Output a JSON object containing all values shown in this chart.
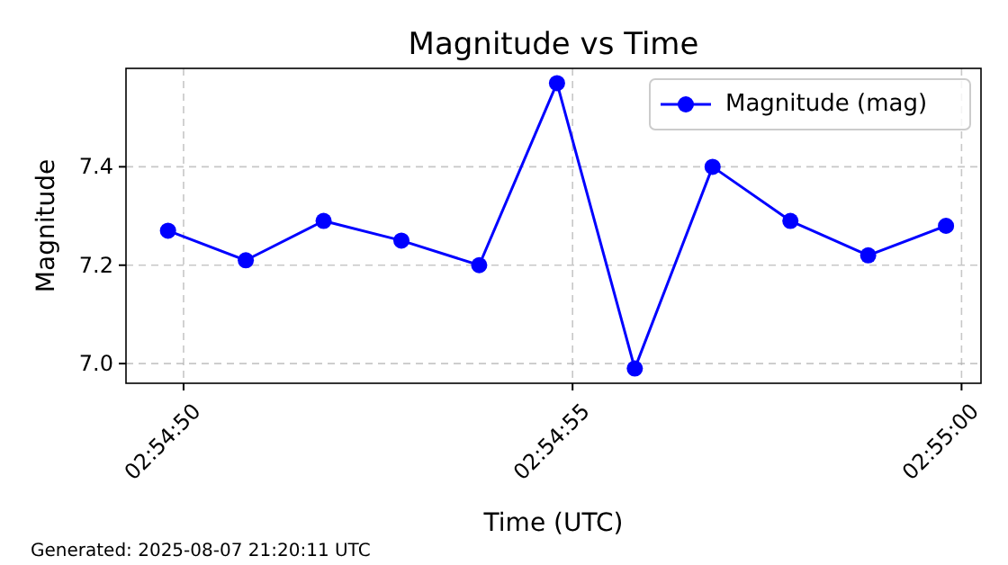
{
  "chart_data": {
    "type": "line",
    "title": "Magnitude vs Time",
    "xlabel": "Time (UTC)",
    "ylabel": "Magnitude",
    "x": [
      "2025-08-07T02:54:49.8",
      "2025-08-07T02:54:50.8",
      "2025-08-07T02:54:51.8",
      "2025-08-07T02:54:52.8",
      "2025-08-07T02:54:53.8",
      "2025-08-07T02:54:54.8",
      "2025-08-07T02:54:55.8",
      "2025-08-07T02:54:56.8",
      "2025-08-07T02:54:57.8",
      "2025-08-07T02:54:58.8",
      "2025-08-07T02:54:59.8"
    ],
    "series": [
      {
        "name": "Magnitude (mag)",
        "color": "#0000ff",
        "values": [
          7.27,
          7.21,
          7.29,
          7.25,
          7.2,
          7.57,
          6.99,
          7.4,
          7.29,
          7.22,
          7.28
        ]
      }
    ],
    "xlim": [
      "2025-08-07T02:54:49.26",
      "2025-08-07T02:55:00.25"
    ],
    "xticks": [
      {
        "value": "2025-08-07T02:54:50",
        "label": "02:54:50"
      },
      {
        "value": "2025-08-07T02:54:55",
        "label": "02:54:55"
      },
      {
        "value": "2025-08-07T02:55:00",
        "label": "02:55:00"
      }
    ],
    "ylim": [
      6.96,
      7.6
    ],
    "yticks": [
      {
        "value": 7.0,
        "label": "7.0"
      },
      {
        "value": 7.2,
        "label": "7.2"
      },
      {
        "value": 7.4,
        "label": "7.4"
      }
    ],
    "grid": true,
    "legend": "top right",
    "marker": "circle",
    "line_style": "solid",
    "annotations": [
      "Generated: 2025-08-07 21:20:11 UTC"
    ]
  }
}
